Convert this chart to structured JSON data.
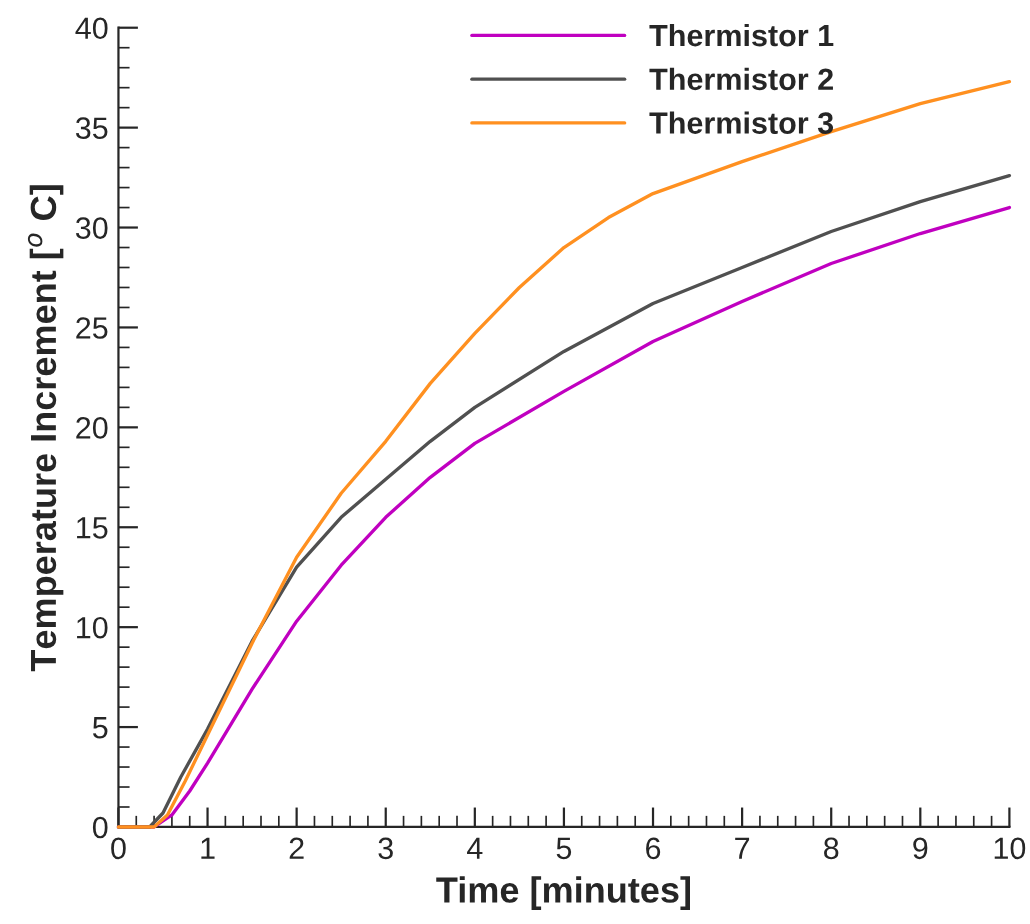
{
  "chart_data": {
    "type": "line",
    "xlabel": "Time [minutes]",
    "ylabel": "Temperature Increment [$^{o}$ C]",
    "xlim": [
      0,
      10
    ],
    "ylim": [
      0,
      40
    ],
    "xticks": [
      0,
      1,
      2,
      3,
      4,
      5,
      6,
      7,
      8,
      9,
      10
    ],
    "yticks": [
      0,
      5,
      10,
      15,
      20,
      25,
      30,
      35,
      40
    ],
    "grid": false,
    "legend": "top",
    "marker": "none",
    "line_style": "solid",
    "series": [
      {
        "name": "Thermistor 1",
        "color": "#c000c0",
        "x": [
          0,
          0.4,
          0.6,
          0.8,
          1,
          1.5,
          2,
          2.5,
          3,
          3.5,
          4,
          5,
          6,
          7,
          8,
          9,
          10
        ],
        "values": [
          0,
          0,
          0.6,
          1.8,
          3.2,
          6.9,
          10.3,
          13.1,
          15.5,
          17.5,
          19.2,
          21.8,
          24.3,
          26.3,
          28.2,
          29.7,
          31.0
        ]
      },
      {
        "name": "Thermistor 2",
        "color": "#505050",
        "x": [
          0,
          0.35,
          0.5,
          0.7,
          1,
          1.5,
          2,
          2.5,
          3,
          3.5,
          4,
          5,
          6,
          7,
          8,
          9,
          10
        ],
        "values": [
          0,
          0,
          0.7,
          2.5,
          4.9,
          9.3,
          13.0,
          15.5,
          17.4,
          19.3,
          21.0,
          23.8,
          26.2,
          28.0,
          29.8,
          31.3,
          32.6
        ]
      },
      {
        "name": "Thermistor 3",
        "color": "#ff9020",
        "x": [
          0,
          0.4,
          0.55,
          0.75,
          1,
          1.5,
          2,
          2.5,
          3,
          3.5,
          4,
          4.5,
          5,
          5.5,
          6,
          7,
          8,
          9,
          10
        ],
        "values": [
          0,
          0,
          0.6,
          2.3,
          4.6,
          9.2,
          13.5,
          16.7,
          19.3,
          22.2,
          24.7,
          27.0,
          29.0,
          30.5,
          31.7,
          33.3,
          34.8,
          36.2,
          37.3
        ]
      }
    ]
  }
}
